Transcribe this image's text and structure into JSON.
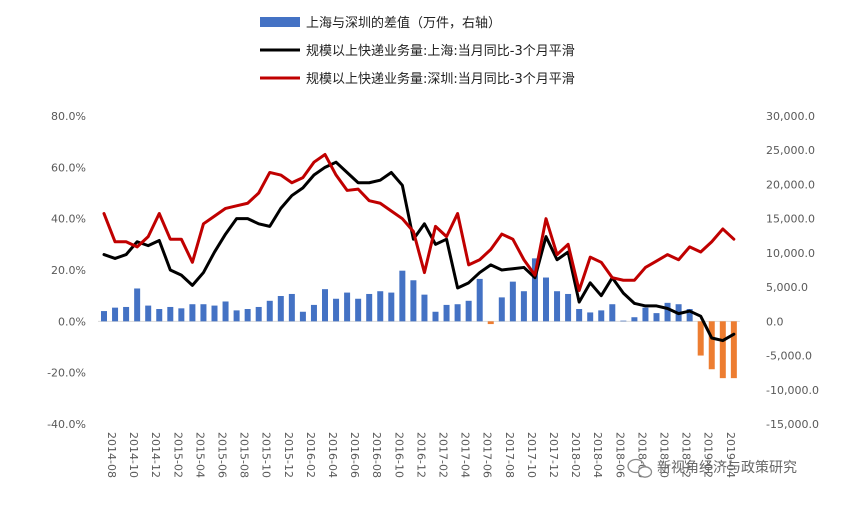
{
  "chart_data": {
    "type": "bar+line",
    "x_ticks": [
      "2014-08",
      "2014-10",
      "2014-12",
      "2015-02",
      "2015-04",
      "2015-06",
      "2015-08",
      "2015-10",
      "2015-12",
      "2016-02",
      "2016-04",
      "2016-06",
      "2016-08",
      "2016-10",
      "2016-12",
      "2017-02",
      "2017-04",
      "2017-06",
      "2017-08",
      "2017-10",
      "2017-12",
      "2018-02",
      "2018-04",
      "2018-06",
      "2018-08",
      "2018-10",
      "2018-12",
      "2019-02",
      "2019-04"
    ],
    "x_months": [
      "2014-08",
      "2014-09",
      "2014-10",
      "2014-11",
      "2014-12",
      "2015-01",
      "2015-02",
      "2015-03",
      "2015-04",
      "2015-05",
      "2015-06",
      "2015-07",
      "2015-08",
      "2015-09",
      "2015-10",
      "2015-11",
      "2015-12",
      "2016-01",
      "2016-02",
      "2016-03",
      "2016-04",
      "2016-05",
      "2016-06",
      "2016-07",
      "2016-08",
      "2016-09",
      "2016-10",
      "2016-11",
      "2016-12",
      "2017-01",
      "2017-02",
      "2017-03",
      "2017-04",
      "2017-05",
      "2017-06",
      "2017-07",
      "2017-08",
      "2017-09",
      "2017-10",
      "2017-11",
      "2017-12",
      "2018-01",
      "2018-02",
      "2018-03",
      "2018-04",
      "2018-05",
      "2018-06",
      "2018-07",
      "2018-08",
      "2018-09",
      "2018-10",
      "2018-11",
      "2018-12",
      "2019-01",
      "2019-02",
      "2019-03",
      "2019-04",
      "2019-05"
    ],
    "y_left": {
      "ticks": [
        "80.0%",
        "60.0%",
        "40.0%",
        "20.0%",
        "0.0%",
        "-20.0%",
        "-40.0%"
      ],
      "min": -40,
      "max": 80,
      "unit": "%"
    },
    "y_right": {
      "ticks": [
        "30,000.0",
        "25,000.0",
        "20,000.0",
        "15,000.0",
        "10,000.0",
        "5,000.0",
        "0.0",
        "-5,000.0",
        "-10,000.0",
        "-15,000.0"
      ],
      "min": -15000,
      "max": 30000
    },
    "legend": [
      {
        "label": "上海与深圳的差值（万件，右轴）",
        "color": "#4472C4",
        "kind": "bar"
      },
      {
        "label": "规模以上快递业务量:上海:当月同比-3个月平滑",
        "color": "#000000",
        "kind": "line"
      },
      {
        "label": "规模以上快递业务量:深圳:当月同比-3个月平滑",
        "color": "#C00000",
        "kind": "line"
      }
    ],
    "series": [
      {
        "name": "上海与深圳的差值（万件，右轴）",
        "axis": "right",
        "positive_color": "#4472C4",
        "negative_color": "#ED7D31",
        "values": [
          1500,
          2000,
          2100,
          4800,
          2300,
          1800,
          2100,
          1900,
          2500,
          2500,
          2300,
          2900,
          1600,
          1800,
          2100,
          3000,
          3700,
          4000,
          1400,
          2400,
          4700,
          3300,
          4200,
          3300,
          4000,
          4400,
          4200,
          7400,
          6000,
          3900,
          1400,
          2400,
          2500,
          3000,
          6200,
          -400,
          3500,
          5800,
          4400,
          9200,
          6400,
          4400,
          4000,
          1800,
          1300,
          1600,
          2500,
          100,
          600,
          2000,
          1200,
          2700,
          2500,
          1800,
          -5000,
          -7000,
          -8300,
          -8300
        ]
      },
      {
        "name": "规模以上快递业务量:上海:当月同比-3个月平滑",
        "axis": "left",
        "values": [
          26,
          24.5,
          26,
          31,
          29.5,
          31.5,
          20,
          18,
          14,
          19,
          27,
          34,
          40,
          40,
          38,
          37,
          44,
          49,
          52,
          57,
          60,
          62,
          58,
          54,
          54,
          55,
          58,
          53,
          32,
          38,
          30,
          32,
          13,
          15,
          19,
          22,
          20,
          20.5,
          21,
          17,
          33,
          24,
          27,
          7.5,
          15,
          10,
          17,
          11,
          7,
          6,
          6,
          5,
          3,
          4,
          2,
          -6.5,
          -7.5,
          -5
        ]
      },
      {
        "name": "规模以上快递业务量:深圳:当月同比-3个月平滑",
        "axis": "left",
        "values": [
          42,
          31,
          31,
          29,
          33,
          42,
          32,
          32,
          23,
          38,
          41,
          44,
          45,
          46,
          50,
          58,
          57,
          54,
          56,
          62,
          65,
          57,
          51,
          51.5,
          47,
          46,
          43,
          40,
          35,
          19,
          37,
          33,
          42,
          22,
          24,
          28,
          34,
          32,
          24,
          18,
          40,
          26,
          30,
          12,
          25,
          23,
          17,
          16,
          16,
          21,
          23.5,
          26,
          24,
          29,
          27,
          31,
          36,
          32
        ]
      }
    ]
  },
  "watermark": {
    "text": "新视角经济与政策研究"
  }
}
